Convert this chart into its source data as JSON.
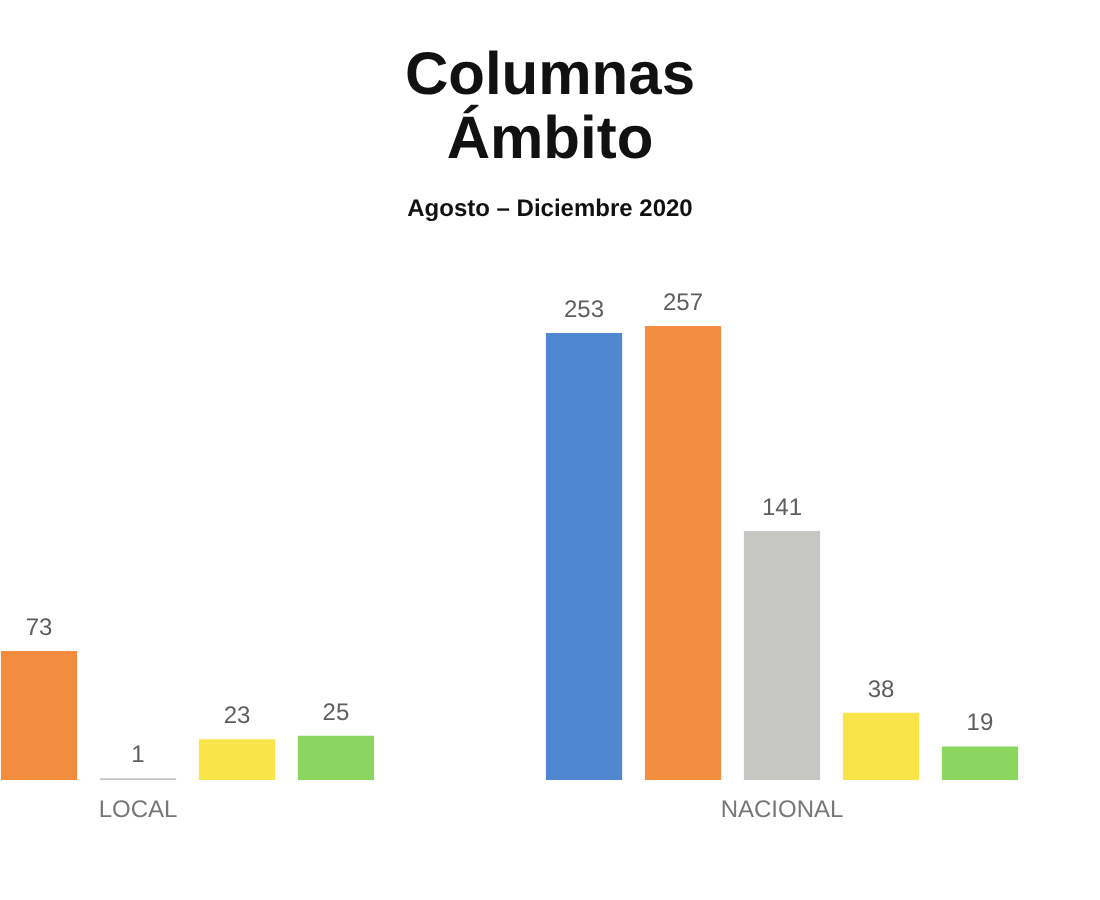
{
  "chart_data": {
    "type": "bar",
    "title": "Columnas Ámbito",
    "subtitle": "Agosto – Diciembre 2020",
    "categories": [
      "LOCAL",
      "NACIONAL"
    ],
    "series": [
      {
        "color": "#4f87d1",
        "values": [
          null,
          253
        ]
      },
      {
        "color": "#f28d40",
        "values": [
          73,
          257
        ]
      },
      {
        "color": "#c6c6c2",
        "values": [
          1,
          141
        ]
      },
      {
        "color": "#f9e54a",
        "values": [
          23,
          38
        ]
      },
      {
        "color": "#8ad65f",
        "values": [
          25,
          19
        ]
      }
    ],
    "data_labels": true,
    "tick_labels": "x"
  }
}
